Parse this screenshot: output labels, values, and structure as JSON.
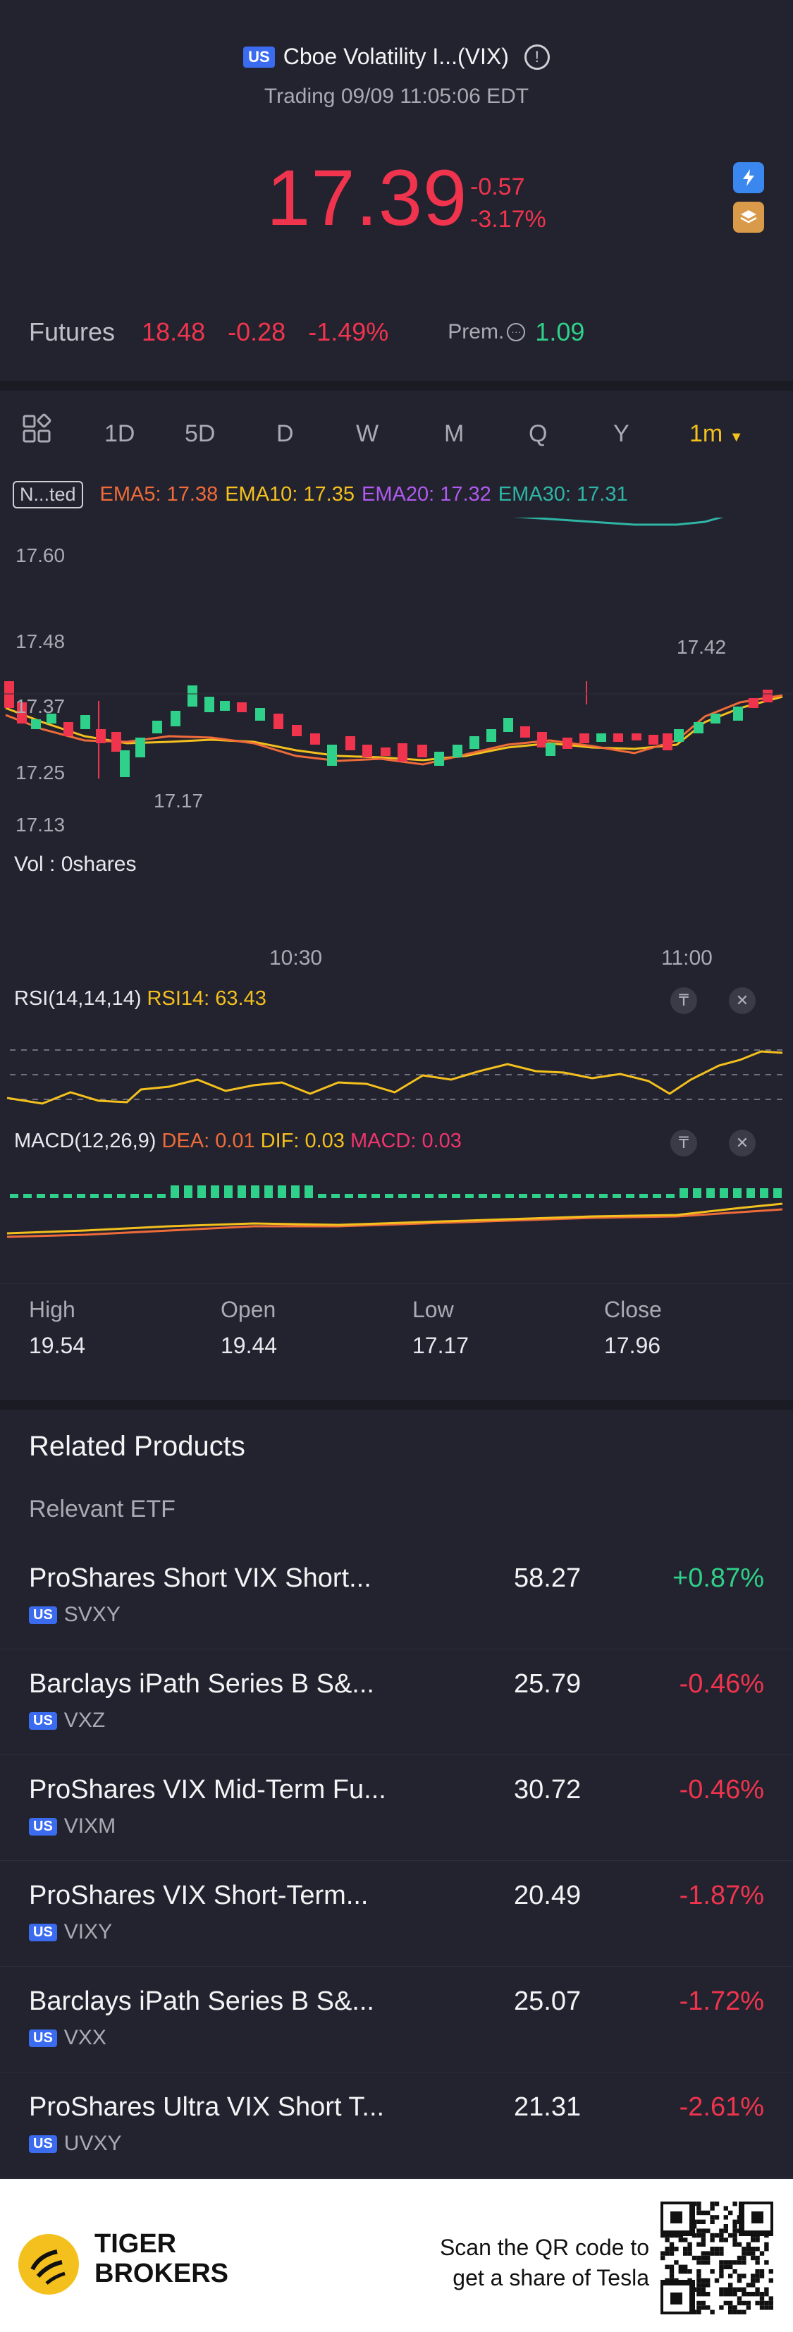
{
  "header": {
    "market_badge": "US",
    "title": "Cboe Volatility I...(VIX)",
    "info_icon": "info-icon",
    "trading_status": "Trading 09/09 11:05:06 EDT",
    "price": "17.39",
    "change": "-0.57",
    "change_pct": "-3.17%",
    "side_btn_1": "lightning-icon",
    "side_btn_2": "layers-icon"
  },
  "futures": {
    "label": "Futures",
    "price": "18.48",
    "change": "-0.28",
    "change_pct": "-1.49%",
    "prem_label": "Prem.",
    "prem_value": "1.09"
  },
  "period_tabs": [
    "1D",
    "5D",
    "D",
    "W",
    "M",
    "Q",
    "Y",
    "1m"
  ],
  "active_period": "1m",
  "ema": {
    "toggle": "N...ted",
    "ema5": "EMA5: 17.38",
    "ema10": "EMA10: 17.35",
    "ema20": "EMA20: 17.32",
    "ema30": "EMA30: 17.31"
  },
  "chart": {
    "y_labels": [
      "17.60",
      "17.48",
      "17.37",
      "17.25",
      "17.13"
    ],
    "high_marker": "17.42",
    "low_marker": "17.17",
    "vol_label": "Vol  : 0shares",
    "time_labels": [
      "10:30",
      "11:00"
    ]
  },
  "rsi": {
    "name": "RSI(14,14,14)",
    "value": "RSI14: 63.43"
  },
  "macd": {
    "name": "MACD(12,26,9)",
    "dea": "DEA: 0.01",
    "dif": "DIF: 0.03",
    "macd": "MACD: 0.03"
  },
  "ohlc": [
    {
      "label": "High",
      "value": "19.54"
    },
    {
      "label": "Open",
      "value": "19.44"
    },
    {
      "label": "Low",
      "value": "17.17"
    },
    {
      "label": "Close",
      "value": "17.96"
    }
  ],
  "related": {
    "title": "Related Products",
    "subtitle": "Relevant ETF",
    "items": [
      {
        "name": "ProShares Short VIX Short...",
        "ticker": "SVXY",
        "price": "58.27",
        "change": "+0.87%",
        "dir": "green"
      },
      {
        "name": "Barclays iPath Series B S&...",
        "ticker": "VXZ",
        "price": "25.79",
        "change": "-0.46%",
        "dir": "red"
      },
      {
        "name": "ProShares VIX Mid-Term Fu...",
        "ticker": "VIXM",
        "price": "30.72",
        "change": "-0.46%",
        "dir": "red"
      },
      {
        "name": "ProShares VIX Short-Term...",
        "ticker": "VIXY",
        "price": "20.49",
        "change": "-1.87%",
        "dir": "red"
      },
      {
        "name": "Barclays iPath Series B S&...",
        "ticker": "VXX",
        "price": "25.07",
        "change": "-1.72%",
        "dir": "red"
      },
      {
        "name": "ProShares Ultra VIX Short T...",
        "ticker": "UVXY",
        "price": "21.31",
        "change": "-2.61%",
        "dir": "red"
      }
    ]
  },
  "footer": {
    "brand_line1": "TIGER",
    "brand_line2": "BROKERS",
    "scan_line1": "Scan the QR code to",
    "scan_line2": "get a share of Tesla"
  },
  "colors": {
    "background": "#22232e",
    "red": "#f0344e",
    "green": "#2fd089",
    "yellow": "#f4c01e",
    "badge_blue": "#3b6cf0"
  }
}
